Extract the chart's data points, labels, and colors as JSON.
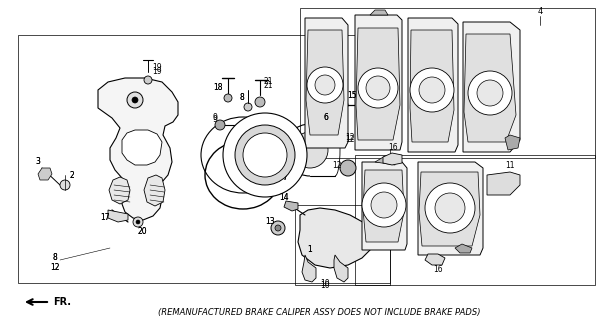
{
  "background_color": "#ffffff",
  "line_color": "#000000",
  "fig_width": 5.98,
  "fig_height": 3.2,
  "dpi": 100,
  "footer_text": "(REMANUFACTURED BRAKE CALIPER ASSY DOES NOT INCLUDE BRAKE PADS)",
  "footer_fontsize": 6.0,
  "fr_label": "FR."
}
